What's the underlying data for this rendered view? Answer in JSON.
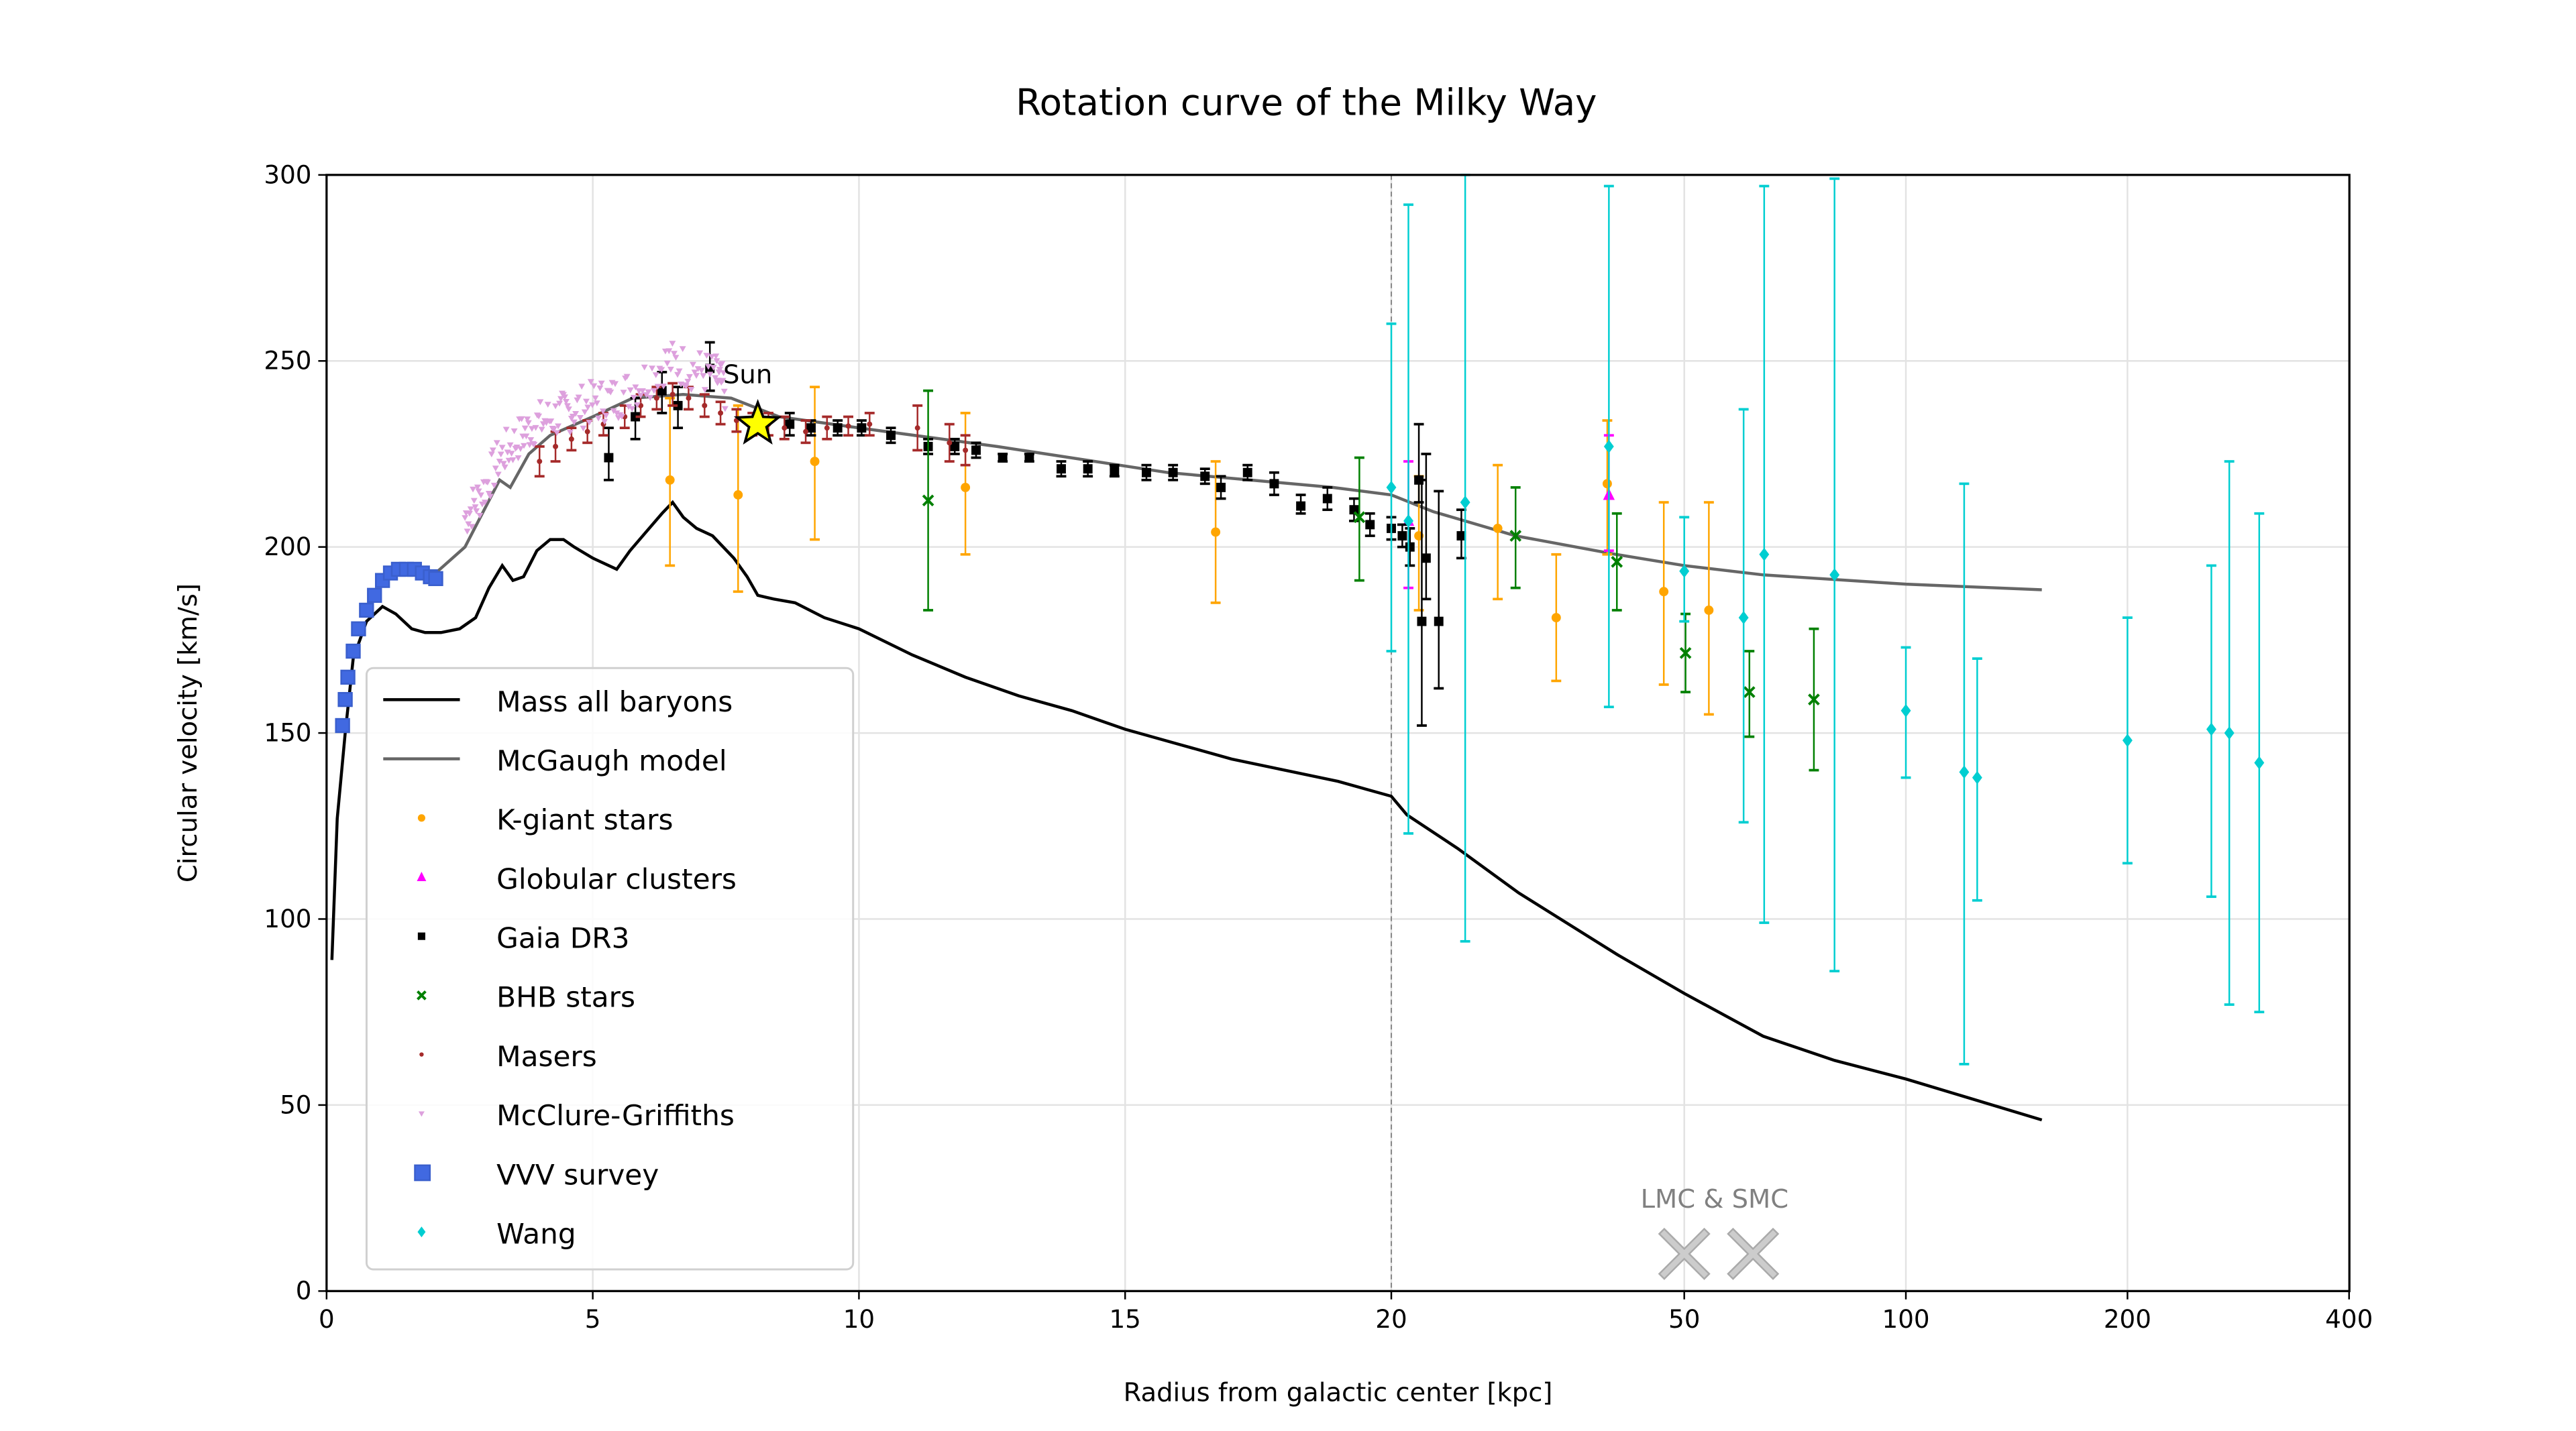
{
  "chart_data": {
    "type": "scatter",
    "title": "Rotation curve of the Milky Way",
    "xlabel": "Radius from galactic center [kpc]",
    "ylabel": "Circular velocity [km/s]",
    "xscale": "linear from 0 to 20, logarithmic from 20 to 400",
    "xlim": [
      0,
      400
    ],
    "ylim": [
      0,
      300
    ],
    "xticks": [
      "0",
      "5",
      "10",
      "15",
      "20",
      "50",
      "100",
      "200",
      "400"
    ],
    "yticks": [
      "0",
      "50",
      "100",
      "150",
      "200",
      "250",
      "300"
    ],
    "grid": true,
    "legend_position": "lower-left",
    "reference_line_x": 20,
    "annotations": [
      {
        "text": "Sun",
        "x": 8.1,
        "y": 233
      },
      {
        "text": "LMC & SMC",
        "x": [
          50,
          62
        ],
        "y": 10
      }
    ],
    "series": [
      {
        "name": "Mass all baryons",
        "kind": "line",
        "color": "#000000",
        "points": [
          [
            0.1,
            89
          ],
          [
            0.2,
            127
          ],
          [
            0.35,
            150
          ],
          [
            0.5,
            170
          ],
          [
            0.75,
            180
          ],
          [
            1.05,
            184
          ],
          [
            1.3,
            182
          ],
          [
            1.6,
            178
          ],
          [
            1.85,
            177
          ],
          [
            2.15,
            177
          ],
          [
            2.5,
            178
          ],
          [
            2.8,
            181
          ],
          [
            3.05,
            189
          ],
          [
            3.3,
            195
          ],
          [
            3.5,
            191
          ],
          [
            3.7,
            192
          ],
          [
            3.95,
            199
          ],
          [
            4.2,
            202
          ],
          [
            4.45,
            202
          ],
          [
            4.65,
            200
          ],
          [
            5.0,
            197
          ],
          [
            5.45,
            194
          ],
          [
            5.7,
            199
          ],
          [
            6.0,
            204
          ],
          [
            6.3,
            209
          ],
          [
            6.5,
            212
          ],
          [
            6.7,
            208
          ],
          [
            6.95,
            205
          ],
          [
            7.25,
            203
          ],
          [
            7.65,
            197
          ],
          [
            7.9,
            192
          ],
          [
            8.1,
            187
          ],
          [
            8.4,
            186
          ],
          [
            8.8,
            185
          ],
          [
            9.35,
            181
          ],
          [
            10,
            178
          ],
          [
            11,
            171
          ],
          [
            12,
            165
          ],
          [
            13,
            160
          ],
          [
            14,
            156
          ],
          [
            15,
            151
          ],
          [
            16,
            147
          ],
          [
            17,
            143
          ],
          [
            18,
            140
          ],
          [
            19,
            137
          ],
          [
            20,
            133
          ],
          [
            21,
            128
          ],
          [
            24.6,
            119
          ],
          [
            29.8,
            107
          ],
          [
            40.5,
            90.5
          ],
          [
            50,
            80
          ],
          [
            64,
            68.5
          ],
          [
            80,
            62
          ],
          [
            100,
            57
          ],
          [
            153,
            46
          ]
        ]
      },
      {
        "name": "McGaugh model",
        "kind": "line",
        "color": "#666666",
        "points": [
          [
            2.05,
            193
          ],
          [
            2.6,
            200
          ],
          [
            3.25,
            218
          ],
          [
            3.45,
            216
          ],
          [
            3.8,
            225
          ],
          [
            4.2,
            230
          ],
          [
            5,
            235
          ],
          [
            5.75,
            240
          ],
          [
            6.7,
            241
          ],
          [
            7.6,
            240
          ],
          [
            8.5,
            235
          ],
          [
            10,
            232
          ],
          [
            12.6,
            227
          ],
          [
            15.8,
            220
          ],
          [
            18.9,
            216
          ],
          [
            20,
            214
          ],
          [
            22.8,
            209.5
          ],
          [
            29.5,
            203
          ],
          [
            40.4,
            198
          ],
          [
            50,
            195
          ],
          [
            64,
            192.5
          ],
          [
            100,
            190
          ],
          [
            153,
            188.5
          ]
        ]
      },
      {
        "name": "K-giant stars",
        "kind": "errorbar",
        "marker": "circle",
        "color": "#ffa500",
        "points": [
          [
            6.45,
            218,
            195,
            240
          ],
          [
            7.73,
            214,
            188,
            238
          ],
          [
            9.17,
            223,
            202,
            243
          ],
          [
            12,
            216,
            198,
            236
          ],
          [
            16.7,
            204,
            185,
            223
          ],
          [
            21.8,
            203,
            183,
            219
          ],
          [
            27.9,
            205,
            186,
            222
          ],
          [
            33.5,
            181,
            164,
            198
          ],
          [
            39.3,
            217,
            198,
            234
          ],
          [
            46.9,
            188,
            163,
            212
          ],
          [
            54,
            183,
            155,
            212
          ]
        ]
      },
      {
        "name": "Globular clusters",
        "kind": "errorbar",
        "marker": "triangle",
        "color": "#ff00ff",
        "points": [
          [
            21.1,
            207,
            189,
            223
          ],
          [
            39.5,
            214,
            199,
            230
          ]
        ]
      },
      {
        "name": "Gaia DR3",
        "kind": "errorbar",
        "marker": "square",
        "color": "#000000",
        "points": [
          [
            5.3,
            224,
            218,
            232
          ],
          [
            5.8,
            235,
            229,
            240
          ],
          [
            6.3,
            242,
            236,
            247
          ],
          [
            6.6,
            238,
            232,
            243
          ],
          [
            7.2,
            248,
            242,
            255
          ],
          [
            8.7,
            233,
            230,
            236
          ],
          [
            9.1,
            232,
            230,
            234
          ],
          [
            9.6,
            232,
            230,
            234
          ],
          [
            10.05,
            232,
            230,
            234
          ],
          [
            10.6,
            230,
            228,
            232
          ],
          [
            11.3,
            227,
            225,
            229
          ],
          [
            11.8,
            227,
            225,
            229
          ],
          [
            12.2,
            226,
            224,
            228
          ],
          [
            12.7,
            224,
            223,
            225
          ],
          [
            13.2,
            224,
            223,
            225
          ],
          [
            13.8,
            221,
            219,
            223
          ],
          [
            14.3,
            221,
            219,
            223
          ],
          [
            14.8,
            220.5,
            219,
            222
          ],
          [
            15.4,
            220,
            218,
            222
          ],
          [
            15.9,
            220,
            218,
            222
          ],
          [
            16.5,
            219,
            217,
            221
          ],
          [
            16.8,
            216,
            213,
            219
          ],
          [
            17.3,
            220,
            218,
            222
          ],
          [
            17.8,
            217,
            214,
            220
          ],
          [
            18.3,
            211,
            209,
            214
          ],
          [
            18.8,
            213,
            210,
            216
          ],
          [
            19.3,
            210,
            207,
            213
          ],
          [
            19.6,
            206,
            203,
            209
          ],
          [
            20,
            205,
            202,
            208
          ],
          [
            20.7,
            203,
            200,
            206
          ],
          [
            21.2,
            200,
            195,
            205
          ],
          [
            21.8,
            218,
            212,
            233
          ],
          [
            22.0,
            180,
            152,
            218
          ],
          [
            22.3,
            197,
            186,
            225
          ],
          [
            23.2,
            180,
            162,
            215
          ],
          [
            24.9,
            203,
            197,
            210
          ]
        ]
      },
      {
        "name": "BHB stars",
        "kind": "errorbar",
        "marker": "x",
        "color": "#008000",
        "points": [
          [
            11.3,
            212.5,
            183,
            242
          ],
          [
            19.4,
            208,
            191,
            224
          ],
          [
            29.5,
            203,
            189,
            216
          ],
          [
            40.5,
            196,
            183,
            209
          ],
          [
            50.2,
            171.5,
            161,
            182
          ],
          [
            61.3,
            161,
            149,
            172
          ],
          [
            75,
            159,
            140,
            178
          ]
        ]
      },
      {
        "name": "Masers",
        "kind": "errorbar",
        "marker": "dot",
        "color": "#a52a2a",
        "points": [
          [
            4,
            223,
            219,
            227
          ],
          [
            4.3,
            227,
            223,
            231
          ],
          [
            4.6,
            229,
            226,
            232
          ],
          [
            4.9,
            231,
            228,
            234
          ],
          [
            5.2,
            233,
            230,
            236
          ],
          [
            5.6,
            235,
            232,
            238
          ],
          [
            5.9,
            238,
            235,
            241
          ],
          [
            6.2,
            240,
            237,
            243
          ],
          [
            6.5,
            241,
            238,
            244
          ],
          [
            6.8,
            240,
            237,
            243
          ],
          [
            7.1,
            238,
            235,
            241
          ],
          [
            7.4,
            236,
            233,
            239
          ],
          [
            7.7,
            234,
            231,
            237
          ],
          [
            8.0,
            233,
            230,
            236
          ],
          [
            8.3,
            233,
            230,
            236
          ],
          [
            8.6,
            232,
            229,
            235
          ],
          [
            9.0,
            231,
            228,
            234
          ],
          [
            9.4,
            232,
            229,
            235
          ],
          [
            9.8,
            232.5,
            230,
            235
          ],
          [
            10.2,
            233,
            230,
            236
          ],
          [
            11.1,
            232,
            226,
            238
          ],
          [
            11.7,
            228,
            223,
            233
          ],
          [
            12.0,
            226,
            222,
            230
          ]
        ]
      },
      {
        "name": "McClure-Griffiths",
        "kind": "scatter",
        "marker": "tri-down",
        "color": "#dda0dd",
        "points": [
          [
            2.6,
            208
          ],
          [
            2.9,
            214
          ],
          [
            3.25,
            224
          ],
          [
            3.6,
            229
          ],
          [
            3.9,
            233
          ],
          [
            4.3,
            235
          ],
          [
            4.65,
            237
          ],
          [
            5.05,
            239
          ],
          [
            5.45,
            240
          ],
          [
            5.9,
            244
          ],
          [
            6.4,
            250
          ],
          [
            6.85,
            248
          ],
          [
            7.3,
            246
          ],
          [
            7.5,
            242
          ]
        ]
      },
      {
        "name": "VVV survey",
        "kind": "scatter",
        "marker": "square",
        "color": "#4169e1",
        "points": [
          [
            0.3,
            152
          ],
          [
            0.35,
            159
          ],
          [
            0.4,
            165
          ],
          [
            0.5,
            172
          ],
          [
            0.6,
            178
          ],
          [
            0.75,
            183
          ],
          [
            0.9,
            187
          ],
          [
            1.05,
            191
          ],
          [
            1.2,
            193
          ],
          [
            1.35,
            194
          ],
          [
            1.5,
            194
          ],
          [
            1.65,
            194
          ],
          [
            1.8,
            193
          ],
          [
            1.95,
            192
          ],
          [
            2.05,
            191.5
          ]
        ]
      },
      {
        "name": "Wang",
        "kind": "errorbar",
        "marker": "diamond",
        "color": "#00ced1",
        "points": [
          [
            20,
            216,
            172,
            260
          ],
          [
            21.1,
            207,
            123,
            292
          ],
          [
            25.2,
            212,
            94,
            300
          ],
          [
            39.5,
            227,
            157,
            297
          ],
          [
            50,
            193.5,
            180,
            208
          ],
          [
            60.2,
            181,
            126,
            237
          ],
          [
            64.2,
            198,
            99,
            297
          ],
          [
            80,
            192.5,
            86,
            299
          ],
          [
            100,
            156,
            138,
            173
          ],
          [
            120,
            139.5,
            61,
            217
          ],
          [
            125,
            138,
            105,
            170
          ],
          [
            200,
            148,
            115,
            181
          ],
          [
            260,
            151,
            106,
            195
          ],
          [
            275,
            150,
            77,
            223
          ],
          [
            302,
            142,
            75,
            209
          ]
        ]
      }
    ],
    "sun": {
      "r": 8.1,
      "v": 233,
      "color": "#ffff00"
    },
    "lmc_smc": {
      "r": [
        50,
        62
      ],
      "v": 10,
      "color": "#cccccc"
    }
  }
}
